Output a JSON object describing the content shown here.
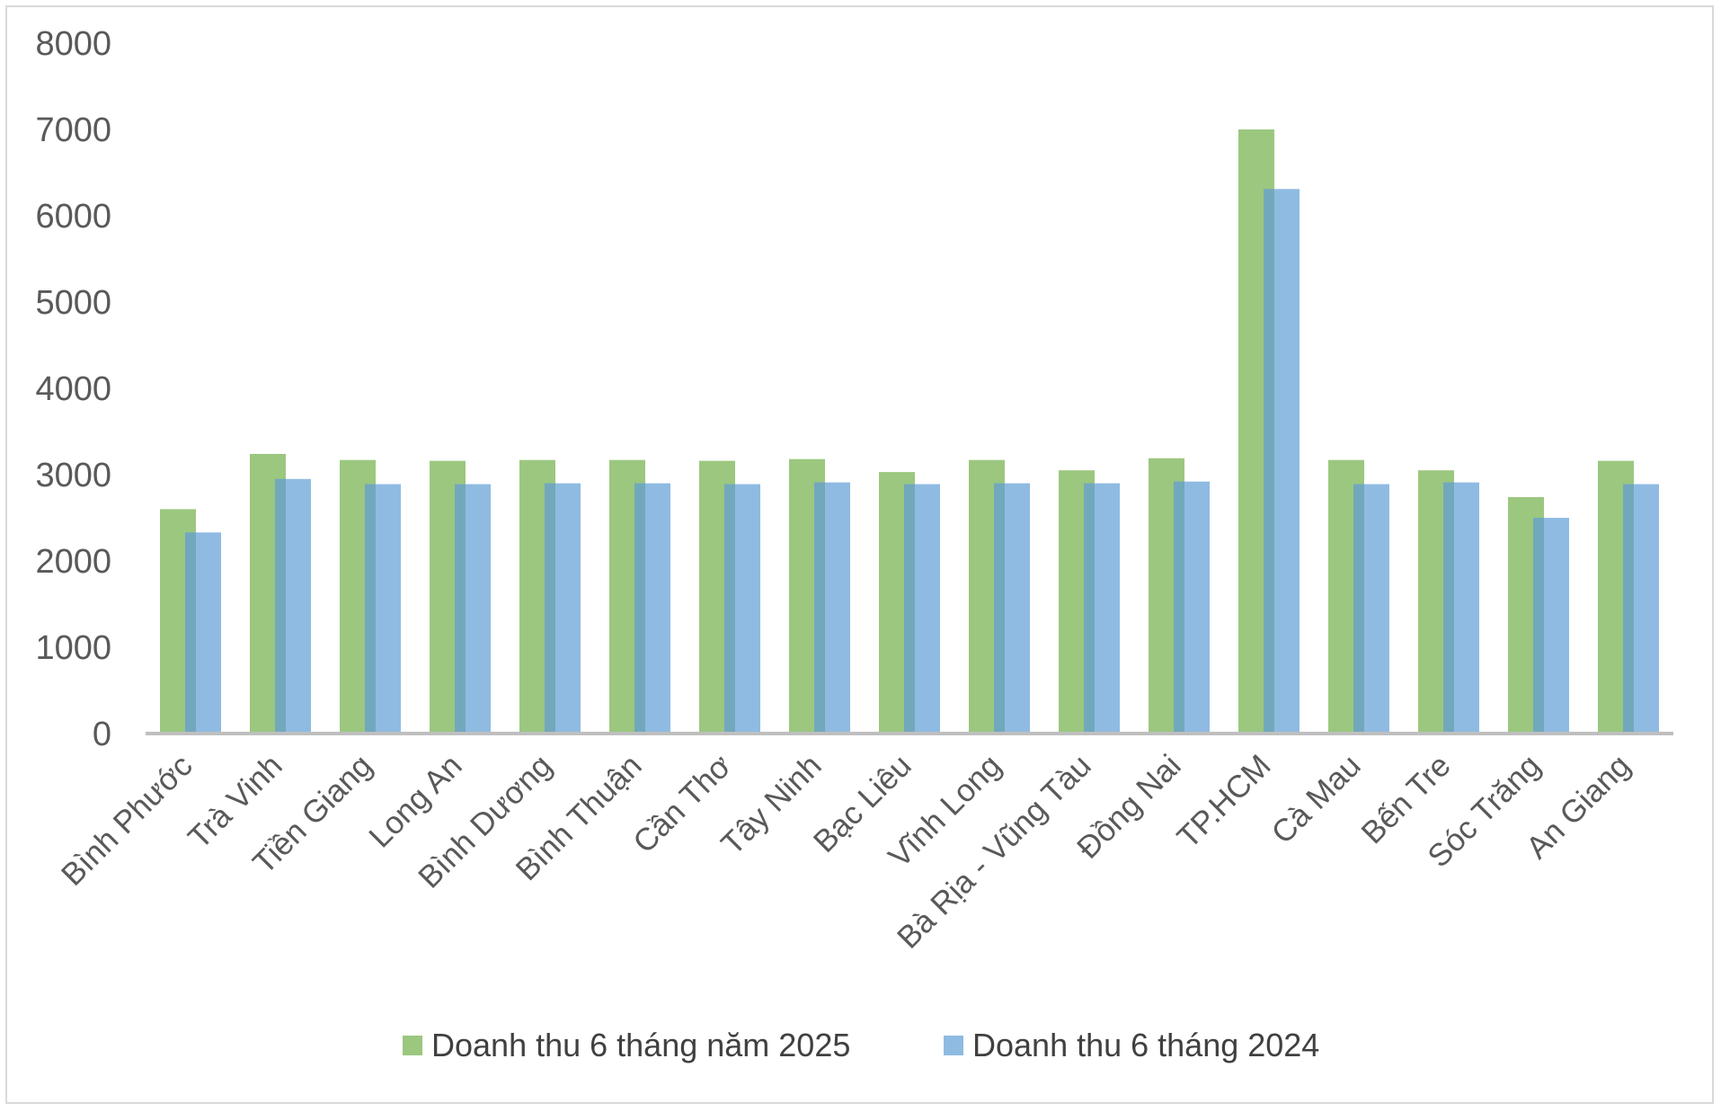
{
  "chart_data": {
    "type": "bar",
    "categories": [
      "Bình Phước",
      "Trà Vinh",
      "Tiền Giang",
      "Long An",
      "Bình Dương",
      "Bình Thuận",
      "Cần Thơ",
      "Tây Ninh",
      "Bạc Liêu",
      "Vĩnh Long",
      "Bà Rịa - Vũng Tàu",
      "Đồng Nai",
      "TP.HCM",
      "Cà Mau",
      "Bến Tre",
      "Sóc Trăng",
      "An Giang"
    ],
    "series": [
      {
        "name": "Doanh thu 6 tháng năm 2025",
        "color": "#9bc77f",
        "values": [
          2600,
          3240,
          3170,
          3160,
          3170,
          3170,
          3160,
          3180,
          3030,
          3170,
          3050,
          3190,
          7000,
          3170,
          3050,
          2740,
          3160
        ]
      },
      {
        "name": "Doanh thu 6 tháng 2024",
        "color": "#8fbbe2",
        "values": [
          2330,
          2950,
          2890,
          2890,
          2900,
          2900,
          2890,
          2910,
          2890,
          2900,
          2900,
          2920,
          6310,
          2890,
          2910,
          2500,
          2890
        ]
      }
    ],
    "yticks": [
      "0",
      "1000",
      "2000",
      "3000",
      "4000",
      "5000",
      "6000",
      "7000",
      "8000"
    ],
    "ylim": [
      0,
      8000
    ],
    "grid": false,
    "legend_position": "bottom",
    "title": "",
    "xlabel": "",
    "ylabel": ""
  }
}
